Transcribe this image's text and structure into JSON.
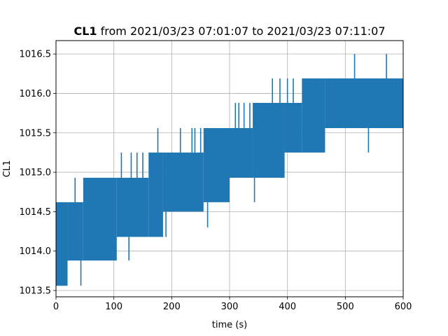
{
  "chart_data": {
    "type": "line",
    "title_bold": "CL1",
    "title_rest": " from 2021/03/23 07:01:07 to 2021/03/23 07:11:07",
    "xlabel": "time (s)",
    "ylabel": "CL1",
    "xlim": [
      0,
      600
    ],
    "ylim": [
      1013.42,
      1016.67
    ],
    "x_ticks": [
      0,
      100,
      200,
      300,
      400,
      500,
      600
    ],
    "x_tick_labels": [
      "0",
      "100",
      "200",
      "300",
      "400",
      "500",
      "600"
    ],
    "y_ticks": [
      1013.5,
      1014.0,
      1014.5,
      1015.0,
      1015.5,
      1016.0,
      1016.5
    ],
    "y_tick_labels": [
      "1013.5",
      "1014.0",
      "1014.5",
      "1015.0",
      "1015.5",
      "1016.0",
      "1016.5"
    ],
    "grid": true,
    "series_color": "#1f77b4",
    "series": [
      {
        "segments": [
          {
            "x0": 0,
            "x1": 20,
            "low": 1013.56,
            "high": 1014.62
          },
          {
            "x0": 20,
            "x1": 47,
            "low": 1013.88,
            "high": 1014.62
          },
          {
            "x0": 47,
            "x1": 105,
            "low": 1013.88,
            "high": 1014.93
          },
          {
            "x0": 105,
            "x1": 160,
            "low": 1014.18,
            "high": 1014.93
          },
          {
            "x0": 160,
            "x1": 185,
            "low": 1014.18,
            "high": 1015.25
          },
          {
            "x0": 185,
            "x1": 255,
            "low": 1014.5,
            "high": 1015.25
          },
          {
            "x0": 255,
            "x1": 300,
            "low": 1014.62,
            "high": 1015.56
          },
          {
            "x0": 300,
            "x1": 340,
            "low": 1014.93,
            "high": 1015.56
          },
          {
            "x0": 340,
            "x1": 395,
            "low": 1014.93,
            "high": 1015.88
          },
          {
            "x0": 395,
            "x1": 425,
            "low": 1015.25,
            "high": 1015.88
          },
          {
            "x0": 425,
            "x1": 465,
            "low": 1015.25,
            "high": 1016.19
          },
          {
            "x0": 465,
            "x1": 600,
            "low": 1015.56,
            "high": 1016.19
          }
        ],
        "spikes": [
          {
            "x": 2,
            "value": 1013.56
          },
          {
            "x": 5,
            "value": 1013.56
          },
          {
            "x": 8,
            "value": 1013.56
          },
          {
            "x": 10,
            "value": 1014.62
          },
          {
            "x": 14,
            "value": 1013.56
          },
          {
            "x": 17,
            "value": 1013.56
          },
          {
            "x": 33,
            "value": 1014.93
          },
          {
            "x": 43,
            "value": 1013.56
          },
          {
            "x": 57,
            "value": 1013.88
          },
          {
            "x": 64,
            "value": 1013.88
          },
          {
            "x": 70,
            "value": 1013.88
          },
          {
            "x": 80,
            "value": 1013.88
          },
          {
            "x": 90,
            "value": 1013.88
          },
          {
            "x": 113,
            "value": 1015.25
          },
          {
            "x": 126,
            "value": 1013.88
          },
          {
            "x": 130,
            "value": 1015.25
          },
          {
            "x": 140,
            "value": 1015.25
          },
          {
            "x": 150,
            "value": 1015.25
          },
          {
            "x": 162,
            "value": 1015.25
          },
          {
            "x": 170,
            "value": 1014.18
          },
          {
            "x": 176,
            "value": 1015.56
          },
          {
            "x": 190,
            "value": 1014.18
          },
          {
            "x": 215,
            "value": 1015.56
          },
          {
            "x": 235,
            "value": 1015.56
          },
          {
            "x": 240,
            "value": 1015.56
          },
          {
            "x": 250,
            "value": 1015.56
          },
          {
            "x": 262,
            "value": 1014.3
          },
          {
            "x": 310,
            "value": 1015.88
          },
          {
            "x": 316,
            "value": 1015.88
          },
          {
            "x": 325,
            "value": 1015.88
          },
          {
            "x": 335,
            "value": 1015.88
          },
          {
            "x": 343,
            "value": 1014.62
          },
          {
            "x": 374,
            "value": 1016.19
          },
          {
            "x": 387,
            "value": 1016.19
          },
          {
            "x": 400,
            "value": 1016.19
          },
          {
            "x": 410,
            "value": 1016.19
          },
          {
            "x": 450,
            "value": 1016.19
          },
          {
            "x": 516,
            "value": 1016.5
          },
          {
            "x": 540,
            "value": 1015.25
          },
          {
            "x": 571,
            "value": 1016.5
          },
          {
            "x": 585,
            "value": 1015.56
          }
        ]
      }
    ]
  }
}
